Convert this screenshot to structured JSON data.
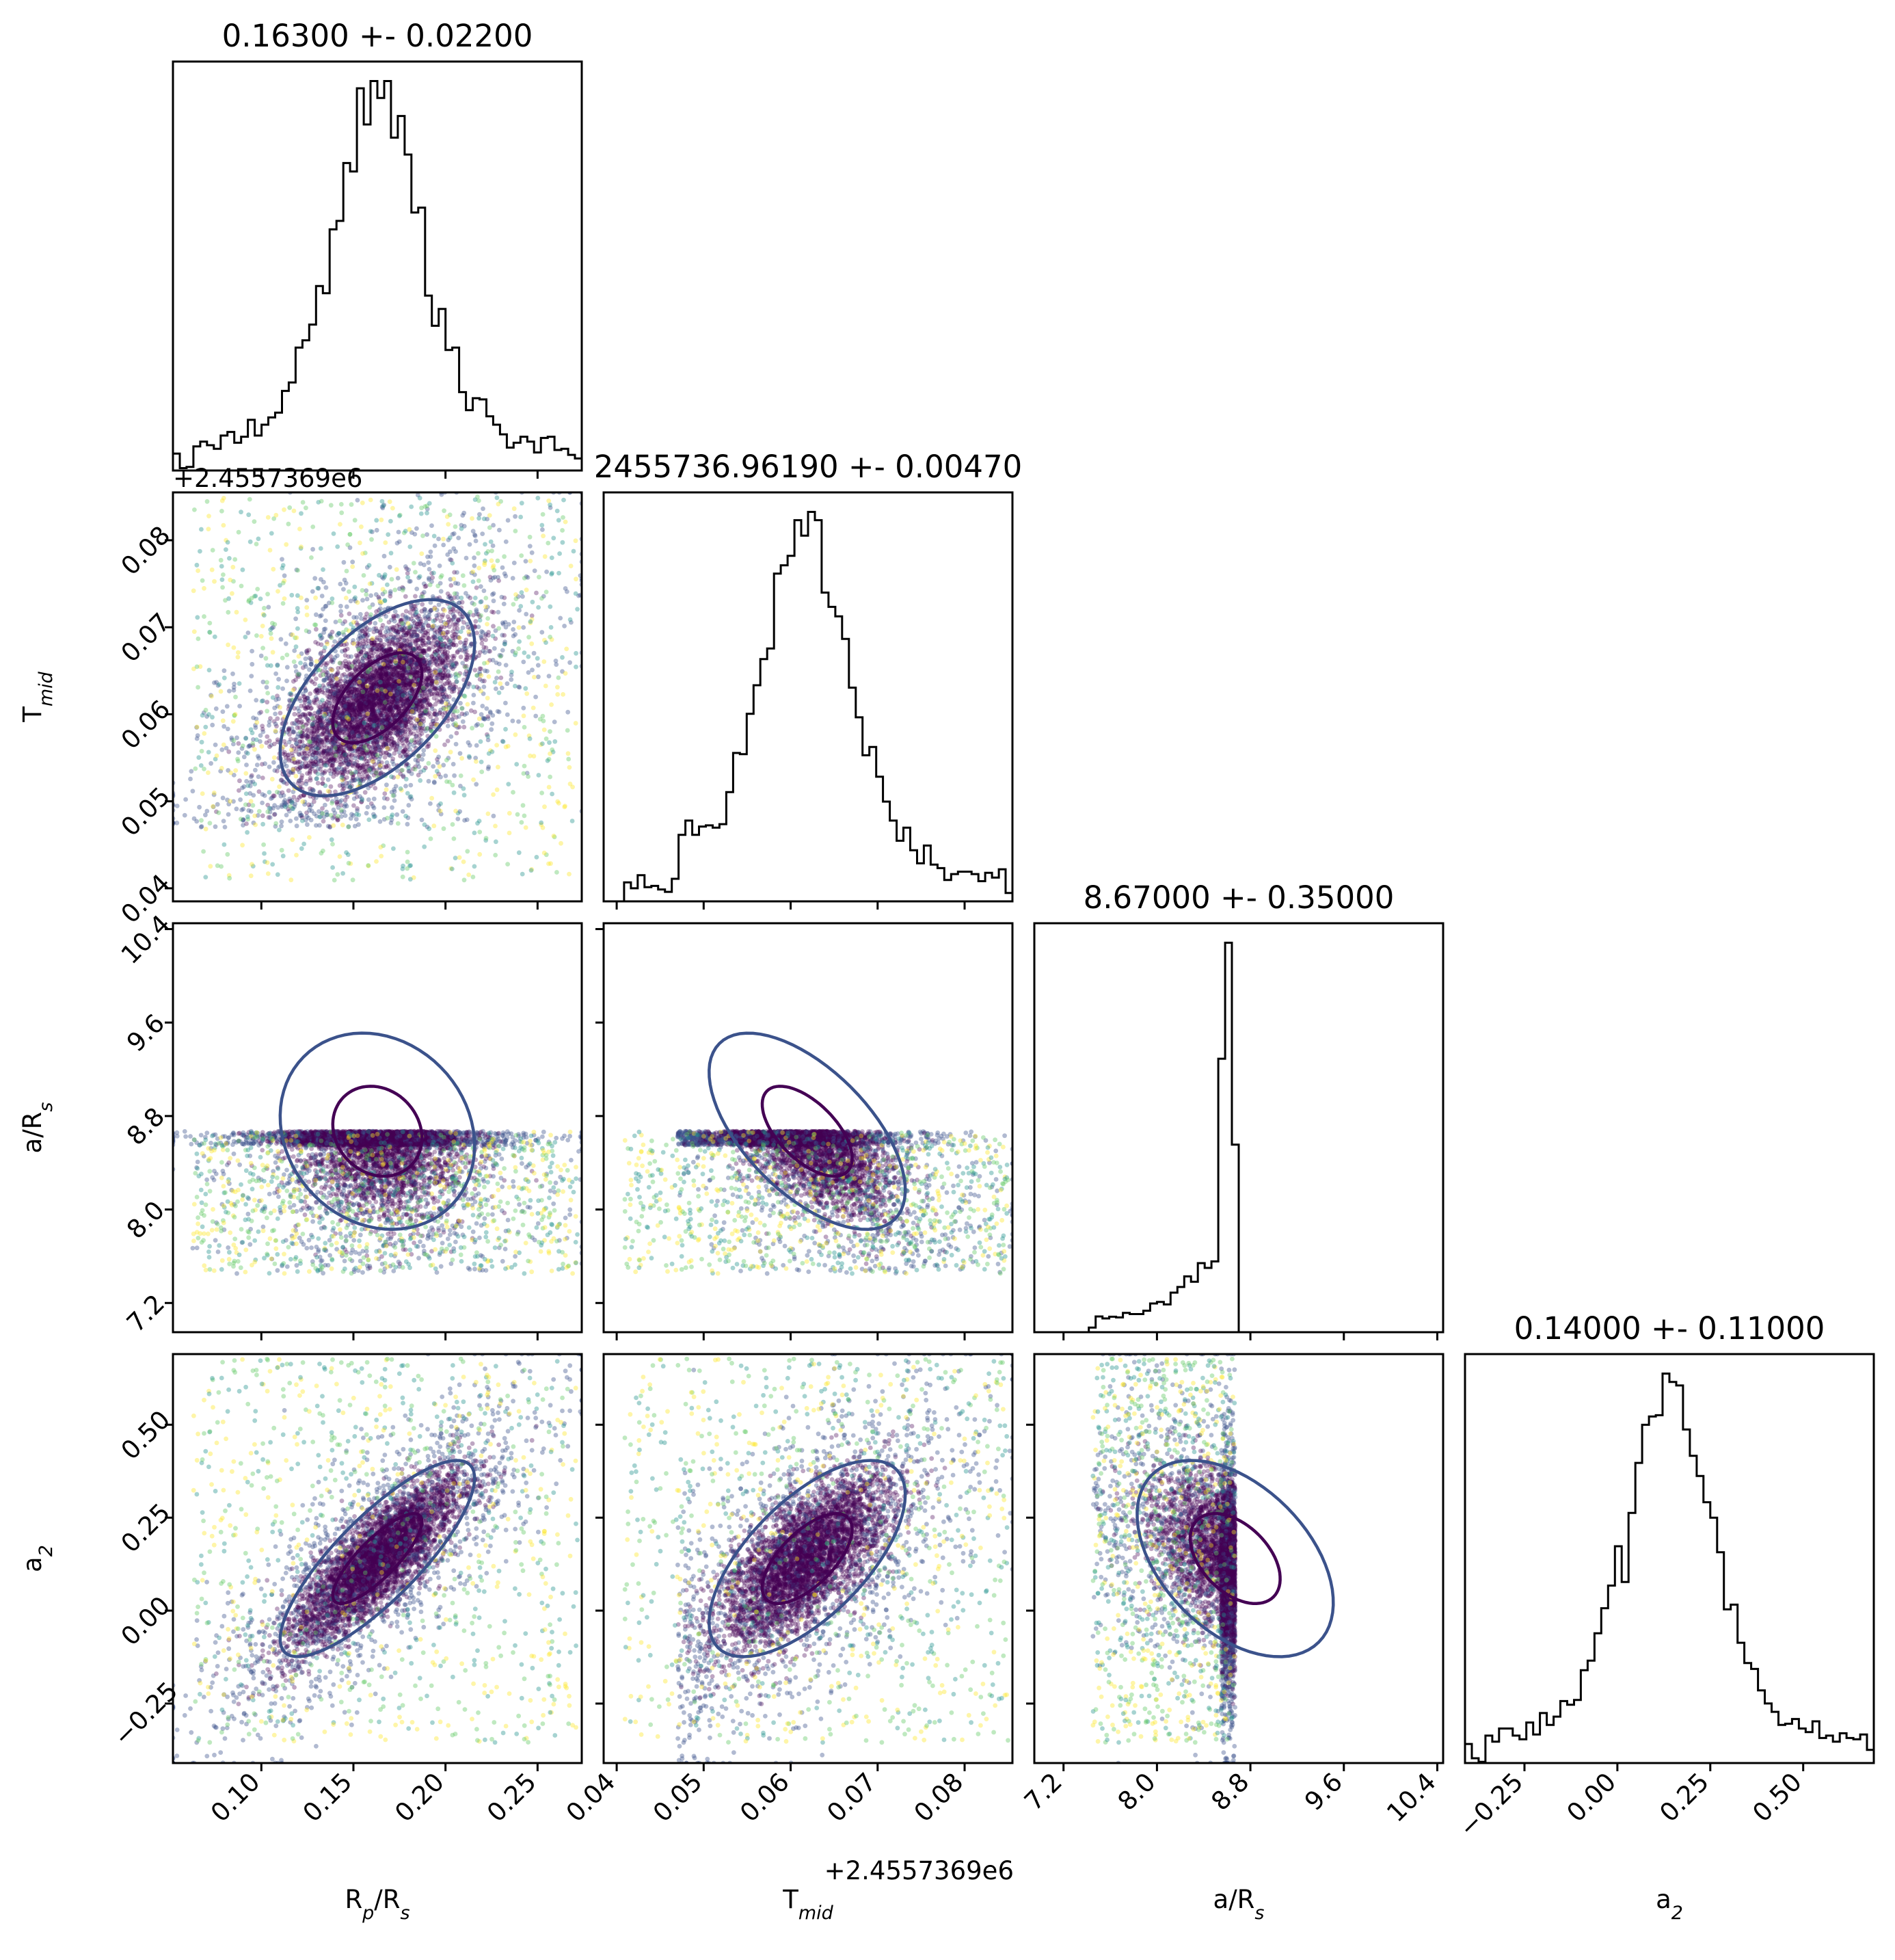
{
  "chart_data": {
    "type": "corner",
    "parameters": [
      {
        "key": "rp",
        "label": "R_p/R_s",
        "title": "0.16300 +- 0.02200",
        "mean": 0.163,
        "std": 0.022,
        "range": [
          0.052,
          0.274
        ],
        "ticks": [
          0.1,
          0.15,
          0.2,
          0.25
        ],
        "tick_labels": [
          "0.10",
          "0.15",
          "0.20",
          "0.25"
        ]
      },
      {
        "key": "tmid",
        "label": "T_mid",
        "title": "2455736.96190 +- 0.00470",
        "mean": 0.0619,
        "std": 0.0047,
        "range": [
          0.0385,
          0.0855
        ],
        "ticks": [
          0.04,
          0.05,
          0.06,
          0.07,
          0.08
        ],
        "tick_labels": [
          "0.04",
          "0.05",
          "0.06",
          "0.07",
          "0.08"
        ],
        "offset": "+2.4557369e6"
      },
      {
        "key": "ars",
        "label": "a/R_s",
        "title": "8.67000 +- 0.35000",
        "mean": 8.67,
        "std": 0.35,
        "range": [
          6.95,
          10.45
        ],
        "ticks": [
          7.2,
          8.0,
          8.8,
          9.6,
          10.4
        ],
        "tick_labels": [
          "7.2",
          "8.0",
          "8.8",
          "9.6",
          "10.4"
        ],
        "support": [
          7.45,
          8.67
        ]
      },
      {
        "key": "a2",
        "label": "a_2",
        "title": "0.14000 +- 0.11000",
        "mean": 0.14,
        "std": 0.11,
        "range": [
          -0.41,
          0.69
        ],
        "ticks": [
          -0.25,
          0.0,
          0.25,
          0.5
        ],
        "tick_labels": [
          "−0.25",
          "0.00",
          "0.25",
          "0.50"
        ]
      }
    ],
    "axis_labels": {
      "rp": {
        "main": "R",
        "sub1": "p",
        "mid": "/R",
        "sub2": "s"
      },
      "tmid": {
        "main": "T",
        "sub1": "mid",
        "mid": "",
        "sub2": ""
      },
      "ars": {
        "main": "a/R",
        "sub1": "s",
        "mid": "",
        "sub2": ""
      },
      "a2": {
        "main": "a",
        "sub1": "2",
        "mid": "",
        "sub2": ""
      }
    },
    "correlations": {
      "rp_tmid": 0.55,
      "rp_ars": -0.15,
      "rp_a2": 0.82,
      "tmid_ars": -0.6,
      "tmid_a2": 0.65,
      "ars_a2": -0.45
    },
    "colormap": [
      "#440154",
      "#3b528b",
      "#21918c",
      "#5ec962",
      "#fde725"
    ],
    "contour_colors": [
      "#440154",
      "#3b528b"
    ],
    "hist_color": "#000000",
    "grid": false,
    "legend": "none"
  }
}
